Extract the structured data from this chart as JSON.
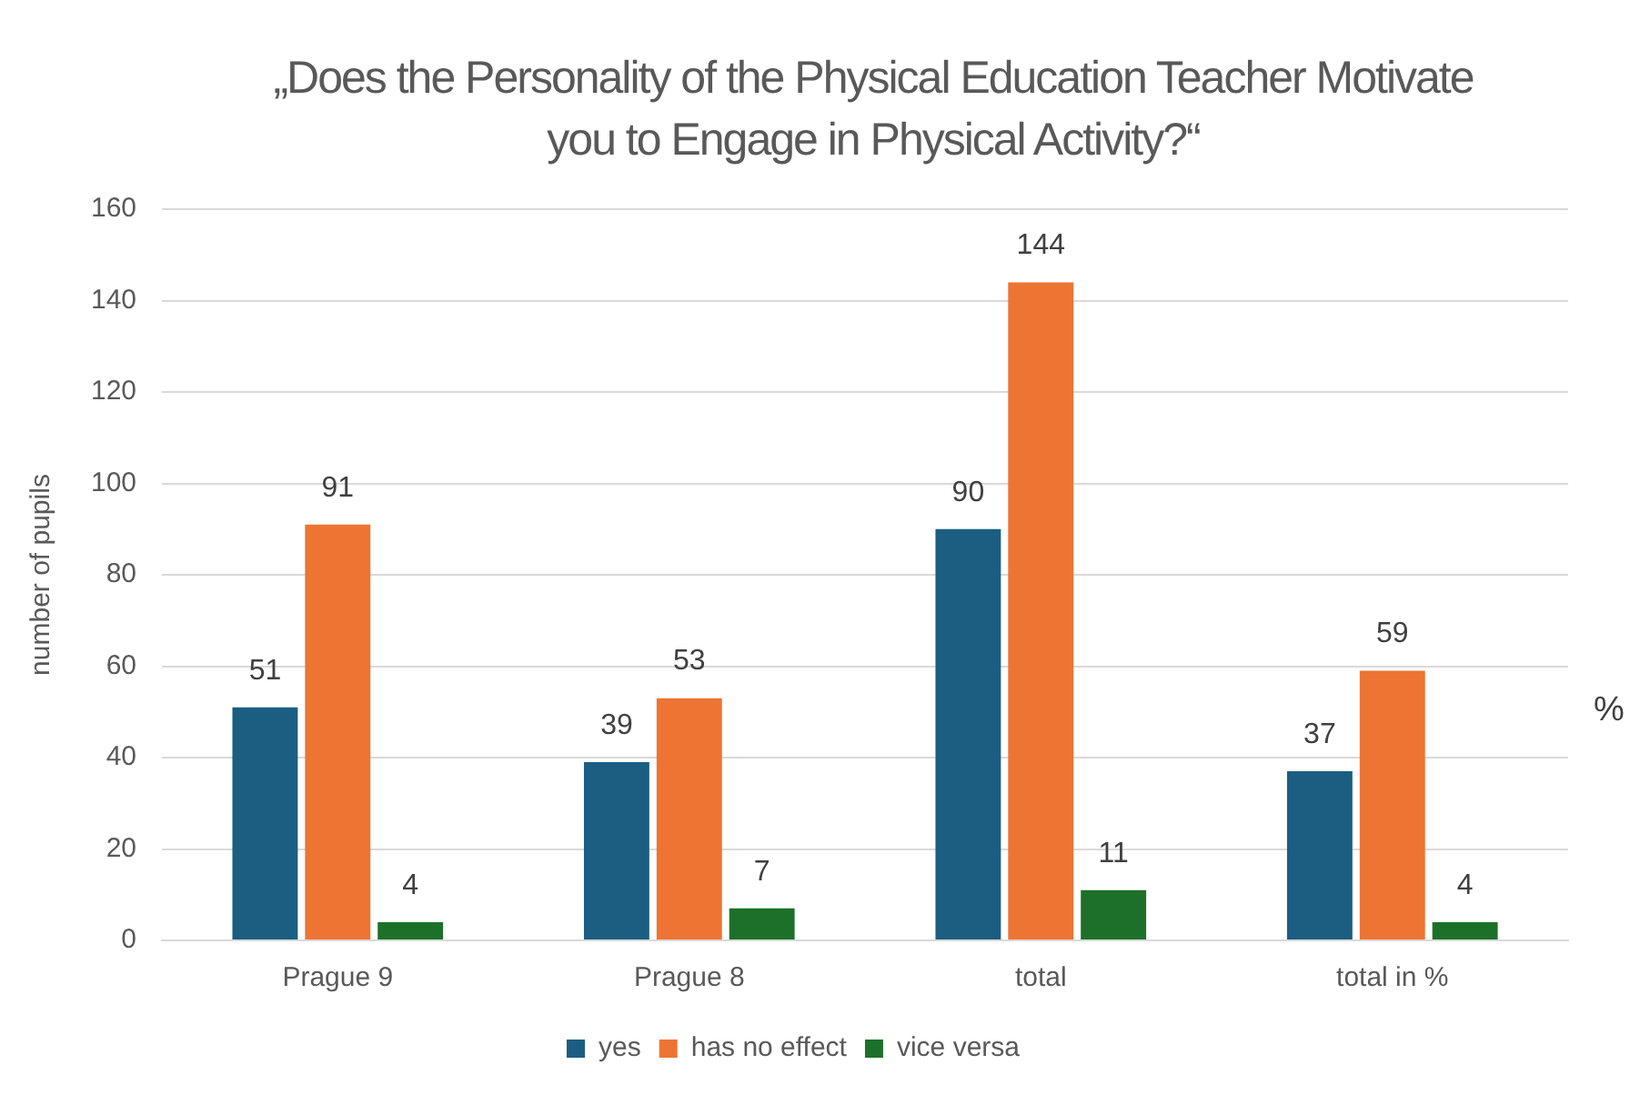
{
  "chart_data": {
    "type": "bar",
    "title": "„Does the Personality of the Physical Education Teacher Motivate you to Engage in Physical Activity?“",
    "ylabel": "number of pupils",
    "categories": [
      "Prague 9",
      "Prague 8",
      "total",
      "total in %"
    ],
    "series": [
      {
        "name": "yes",
        "color": "#1b5e82",
        "values": [
          51,
          39,
          90,
          37
        ]
      },
      {
        "name": "has no effect",
        "color": "#ed7433",
        "values": [
          91,
          53,
          144,
          59
        ]
      },
      {
        "name": "vice versa",
        "color": "#1c7029",
        "values": [
          4,
          7,
          11,
          4
        ]
      }
    ],
    "ylim": [
      0,
      160
    ],
    "yticks": [
      0,
      20,
      40,
      60,
      80,
      100,
      120,
      140,
      160
    ],
    "grid": "y",
    "legend": "bottom",
    "data_labels": true,
    "annotations": [
      "%"
    ]
  }
}
